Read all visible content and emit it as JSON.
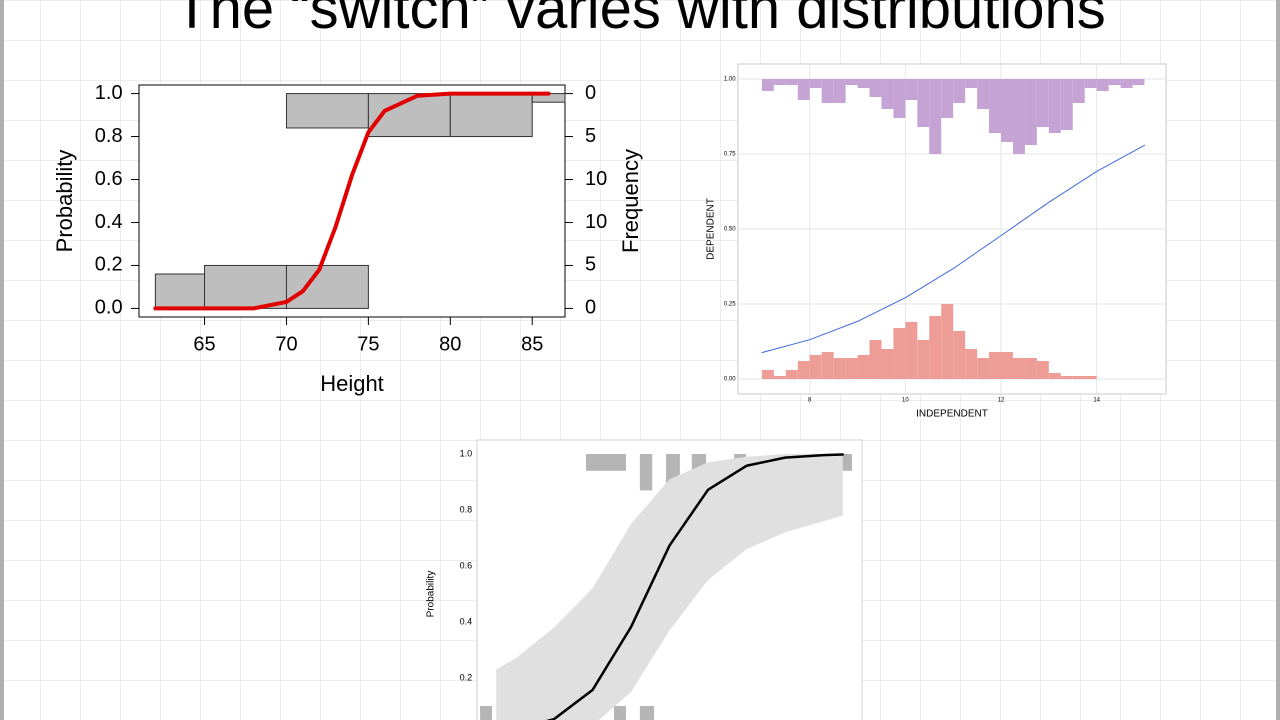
{
  "title": "The “switch” varies with distributions",
  "chart_data": [
    {
      "type": "line",
      "x": [
        62,
        64,
        66,
        68,
        70,
        71,
        72,
        73,
        74,
        75,
        76,
        78,
        80,
        82,
        84,
        86
      ],
      "values": [
        0,
        0,
        0,
        0,
        0.03,
        0.08,
        0.18,
        0.38,
        0.62,
        0.82,
        0.92,
        0.99,
        1,
        1,
        1,
        1
      ],
      "color": "#e00000",
      "xlim": [
        61,
        87
      ],
      "ylim": [
        -0.04,
        1.04
      ],
      "xticks": [
        65,
        70,
        75,
        80,
        85
      ],
      "yticks": [
        {
          "value": 0,
          "label": "0.0"
        },
        {
          "value": 0.2,
          "label": "0.2"
        },
        {
          "value": 0.4,
          "label": "0.4"
        },
        {
          "value": 0.6,
          "label": "0.6"
        },
        {
          "value": 0.8,
          "label": "0.8"
        },
        {
          "value": 1,
          "label": "1.0"
        }
      ],
      "xlabel": "Height",
      "ylabel": "Probability",
      "y2label": "Frequency",
      "y2lim": [
        -1,
        26
      ],
      "y2ticks": [
        0,
        5,
        10
      ],
      "y2lim_top": [
        -1,
        26
      ],
      "y2ticks_top": [
        0,
        5,
        10
      ],
      "bars_axis": "y2",
      "bar_color": "#bebebe",
      "bottom_bars": [
        {
          "x": [
            62,
            65
          ],
          "value": 4
        },
        {
          "x": [
            65,
            70
          ],
          "value": 5
        },
        {
          "x": [
            70,
            75
          ],
          "value": 5
        }
      ],
      "top_bars": [
        {
          "x": [
            70,
            75
          ],
          "value": 4
        },
        {
          "x": [
            75,
            80
          ],
          "value": 5
        },
        {
          "x": [
            80,
            85
          ],
          "value": 5
        },
        {
          "x": [
            85,
            87
          ],
          "value": 1
        }
      ]
    },
    {
      "type": "line",
      "x": [
        7,
        8,
        9,
        10,
        11,
        12,
        13,
        14,
        15
      ],
      "values": [
        0.088,
        0.131,
        0.192,
        0.271,
        0.368,
        0.478,
        0.589,
        0.692,
        0.779
      ],
      "color": "#4169e1",
      "xlim": [
        6.5,
        15.45
      ],
      "ylim": [
        -0.05,
        1.05
      ],
      "ylim_top": [
        -0.05,
        1.05
      ],
      "xticks": [
        8,
        10,
        12,
        14
      ],
      "yticks": [
        {
          "value": 0,
          "label": "0.00"
        },
        {
          "value": 0.25,
          "label": "0.25"
        },
        {
          "value": 0.5,
          "label": "0.50"
        },
        {
          "value": 0.75,
          "label": "0.75"
        },
        {
          "value": 1,
          "label": "1.00"
        }
      ],
      "grid": true,
      "xlabel": "INDEPENDENT",
      "ylabel": "DEPENDENT",
      "bottom_color": "#ee9d96",
      "top_color": "#c5a3d5",
      "bottom_bins": [
        7,
        7.25,
        7.5,
        7.75,
        8,
        8.25,
        8.5,
        8.75,
        9,
        9.25,
        9.5,
        9.75,
        10,
        10.25,
        10.5,
        10.75,
        11,
        11.25,
        11.5,
        11.75,
        12,
        12.25,
        12.5,
        12.75,
        13,
        13.25,
        13.5,
        13.75,
        14
      ],
      "bottom_values": [
        0.03,
        0.01,
        0.03,
        0.06,
        0.08,
        0.09,
        0.07,
        0.07,
        0.08,
        0.13,
        0.1,
        0.17,
        0.19,
        0.13,
        0.21,
        0.25,
        0.16,
        0.1,
        0.07,
        0.09,
        0.09,
        0.07,
        0.07,
        0.06,
        0.02,
        0.01,
        0.01,
        0.01
      ],
      "top_bins": [
        7,
        7.25,
        7.5,
        7.75,
        8,
        8.25,
        8.5,
        8.75,
        9,
        9.25,
        9.5,
        9.75,
        10,
        10.25,
        10.5,
        10.75,
        11,
        11.25,
        11.5,
        11.75,
        12,
        12.25,
        12.5,
        12.75,
        13,
        13.25,
        13.5,
        13.75,
        14,
        14.25,
        14.5,
        14.75,
        15
      ],
      "top_values": [
        0.04,
        0.02,
        0.02,
        0.07,
        0.03,
        0.08,
        0.08,
        0.02,
        0.03,
        0.06,
        0.1,
        0.13,
        0.07,
        0.16,
        0.25,
        0.13,
        0.08,
        0.03,
        0.1,
        0.18,
        0.21,
        0.25,
        0.22,
        0.16,
        0.18,
        0.17,
        0.08,
        0.03,
        0.04,
        0.02,
        0.03,
        0.02
      ]
    },
    {
      "type": "line",
      "x": [
        0.5,
        1,
        2,
        3,
        4,
        5,
        6,
        7,
        8,
        9,
        9.5
      ],
      "values": [
        0.01,
        0.017,
        0.053,
        0.157,
        0.382,
        0.673,
        0.872,
        0.958,
        0.987,
        0.996,
        0.998
      ],
      "lower": [
        0,
        0,
        0,
        0.03,
        0.15,
        0.37,
        0.55,
        0.66,
        0.72,
        0.76,
        0.78
      ],
      "upper": [
        0.23,
        0.27,
        0.38,
        0.52,
        0.75,
        0.91,
        0.97,
        0.99,
        1,
        1,
        1
      ],
      "color": "#000000",
      "band_color": "#e0e0e0",
      "bar_color": "#b5b5b5",
      "xlim": [
        0,
        10
      ],
      "ylim": [
        -0.05,
        1.05
      ],
      "ylim_top": [
        -0.05,
        1.05
      ],
      "yticks": [
        {
          "value": 0.2,
          "label": "0.2"
        },
        {
          "value": 0.4,
          "label": "0.4"
        },
        {
          "value": 0.6,
          "label": "0.6"
        },
        {
          "value": 0.8,
          "label": "0.8"
        },
        {
          "value": 1,
          "label": "1.0"
        }
      ],
      "ylabel": "Probability",
      "top_bars": [
        {
          "x": [
            2.83,
            3.87
          ],
          "value": 0.06
        },
        {
          "x": [
            4.23,
            4.55
          ],
          "value": 0.13
        },
        {
          "x": [
            4.91,
            5.27
          ],
          "value": 0.12
        },
        {
          "x": [
            5.58,
            5.95
          ],
          "value": 0.06
        },
        {
          "x": [
            6.68,
            6.99
          ],
          "value": 0.06
        },
        {
          "x": [
            8.03,
            8.39
          ],
          "value": 0.12
        },
        {
          "x": [
            8.7,
            9.06
          ],
          "value": 0.06
        },
        {
          "x": [
            9.43,
            9.74
          ],
          "value": 0.06
        }
      ],
      "bottom_bars": [
        {
          "x": [
            0.08,
            0.39
          ],
          "value": 0.1
        },
        {
          "x": [
            1.74,
            2.1
          ],
          "value": 0.28
        },
        {
          "x": [
            3.56,
            3.87
          ],
          "value": 0.1
        },
        {
          "x": [
            4.23,
            4.6
          ],
          "value": 0.1
        }
      ]
    }
  ]
}
